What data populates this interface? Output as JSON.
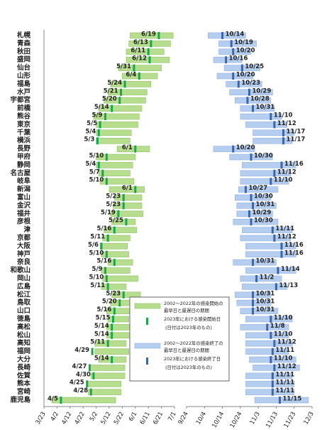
{
  "chart_data": {
    "type": "range",
    "categories": [
      "札幌",
      "青森",
      "秋田",
      "盛岡",
      "仙台",
      "山形",
      "福島",
      "水戸",
      "宇都宮",
      "前橋",
      "熊谷",
      "東京",
      "千葉",
      "横浜",
      "長野",
      "甲府",
      "静岡",
      "名古屋",
      "岐阜",
      "新潟",
      "富山",
      "金沢",
      "福井",
      "彦根",
      "津",
      "京都",
      "大阪",
      "神戸",
      "奈良",
      "和歌山",
      "岡山",
      "広島",
      "松江",
      "鳥取",
      "山口",
      "徳島",
      "高松",
      "松山",
      "高知",
      "福岡",
      "大分",
      "長崎",
      "佐賀",
      "熊本",
      "宮崎",
      "鹿児島"
    ],
    "panels": [
      {
        "xlim": [
          "3/23",
          "7/1"
        ],
        "xticks": [
          "3/23",
          "4/2",
          "4/12",
          "4/22",
          "5/2",
          "5/12",
          "5/22",
          "6/1",
          "6/11",
          "6/21",
          "7/1"
        ],
        "ranges": {
          "name": [
            "2002～2022年の感染開始の",
            "最早日と最遅日の期間"
          ],
          "color": "#b7dd8e",
          "values": [
            [
              "5/28",
              "6/30"
            ],
            [
              "5/27",
              "6/28"
            ],
            [
              "5/25",
              "6/23"
            ],
            [
              "5/25",
              "6/27"
            ],
            [
              "5/19",
              "6/21"
            ],
            [
              "5/22",
              "6/18"
            ],
            [
              "5/13",
              "6/13"
            ],
            [
              "5/11",
              "6/10"
            ],
            [
              "5/8",
              "6/9"
            ],
            [
              "5/4",
              "6/6"
            ],
            [
              "4/30",
              "6/4"
            ],
            [
              "5/2",
              "6/3"
            ],
            [
              "5/2",
              "5/29"
            ],
            [
              "5/2",
              "5/28"
            ],
            [
              "5/18",
              "6/12"
            ],
            [
              "5/2",
              "6/1"
            ],
            [
              "5/2",
              "5/30"
            ],
            [
              "5/4",
              "5/28"
            ],
            [
              "5/5",
              "5/31"
            ],
            [
              "5/12",
              "6/8"
            ],
            [
              "5/16",
              "6/6"
            ],
            [
              "5/15",
              "6/6"
            ],
            [
              "5/13",
              "6/7"
            ],
            [
              "5/14",
              "6/1"
            ],
            [
              "5/8",
              "6/2"
            ],
            [
              "5/7",
              "5/28"
            ],
            [
              "5/5",
              "5/26"
            ],
            [
              "5/6",
              "5/27"
            ],
            [
              "5/11",
              "5/30"
            ],
            [
              "5/6",
              "5/28"
            ],
            [
              "5/7",
              "6/3"
            ],
            [
              "5/6",
              "5/25"
            ],
            [
              "5/14",
              "6/5"
            ],
            [
              "5/13",
              "6/4"
            ],
            [
              "5/10",
              "6/1"
            ],
            [
              "5/11",
              "5/27"
            ],
            [
              "5/10",
              "5/30"
            ],
            [
              "5/10",
              "5/28"
            ],
            [
              "5/1",
              "5/25"
            ],
            [
              "5/1",
              "5/27"
            ],
            [
              "5/4",
              "5/25"
            ],
            [
              "4/27",
              "5/24"
            ],
            [
              "4/28",
              "5/24"
            ],
            [
              "4/26",
              "5/21"
            ],
            [
              "4/26",
              "5/21"
            ],
            [
              "3/29",
              "5/17"
            ]
          ]
        },
        "markers": {
          "name": "2023年における感染開始日",
          "color": "#15a84c",
          "label_side": "left",
          "values": [
            "6/19",
            "6/13",
            "6/11",
            "6/12",
            "5/31",
            "6/4",
            "5/24",
            "5/21",
            "5/20",
            "5/14",
            "5/9",
            "5/5",
            "5/4",
            "5/3",
            "6/1",
            "5/10",
            "5/4",
            "5/7",
            "5/10",
            "6/1",
            "5/23",
            "5/23",
            "5/19",
            "5/25",
            "5/16",
            "5/11",
            "5/6",
            "5/10",
            "5/16",
            "5/9",
            "5/10",
            "5/11",
            "5/23",
            "5/20",
            "5/16",
            "5/15",
            "5/14",
            "5/14",
            "5/11",
            "4/29",
            "5/14",
            "4/27",
            "4/30",
            "4/25",
            "4/28",
            "4/5"
          ]
        },
        "note": "(日付は2023年のもの)"
      },
      {
        "xlim": [
          "9/24",
          "12/3"
        ],
        "xticks": [
          "9/24",
          "10/4",
          "10/14",
          "10/24",
          "11/3",
          "11/13",
          "11/23",
          "12/3"
        ],
        "ranges": {
          "name": [
            "2002～2022年の感染終了の",
            "最早日と最遅日の期間"
          ],
          "color": "#b5cdee",
          "values": [
            [
              "10/6",
              "10/27"
            ],
            [
              "10/12",
              "11/2"
            ],
            [
              "10/12",
              "10/30"
            ],
            [
              "10/9",
              "10/25"
            ],
            [
              "10/15",
              "11/4"
            ],
            [
              "10/11",
              "10/31"
            ],
            [
              "10/16",
              "11/5"
            ],
            [
              "10/18",
              "11/11"
            ],
            [
              "10/21",
              "11/10"
            ],
            [
              "10/24",
              "11/12"
            ],
            [
              "10/24",
              "11/16"
            ],
            [
              "10/27",
              "11/19"
            ],
            [
              "10/31",
              "11/23"
            ],
            [
              "10/31",
              "11/22"
            ],
            [
              "10/9",
              "11/1"
            ],
            [
              "10/18",
              "11/11"
            ],
            [
              "10/25",
              "11/24"
            ],
            [
              "10/24",
              "11/21"
            ],
            [
              "10/24",
              "11/20"
            ],
            [
              "10/23",
              "11/14"
            ],
            [
              "10/21",
              "11/10"
            ],
            [
              "10/22",
              "11/13"
            ],
            [
              "10/22",
              "11/11"
            ],
            [
              "10/20",
              "11/14"
            ],
            [
              "10/25",
              "11/22"
            ],
            [
              "10/24",
              "11/21"
            ],
            [
              "10/27",
              "11/24"
            ],
            [
              "10/27",
              "11/24"
            ],
            [
              "10/20",
              "11/13"
            ],
            [
              "10/27",
              "11/24"
            ],
            [
              "10/24",
              "11/16"
            ],
            [
              "10/25",
              "11/19"
            ],
            [
              "10/21",
              "11/10"
            ],
            [
              "10/22",
              "11/10"
            ],
            [
              "10/24",
              "11/14"
            ],
            [
              "10/27",
              "11/22"
            ],
            [
              "10/24",
              "11/20"
            ],
            [
              "10/27",
              "11/20"
            ],
            [
              "10/27",
              "11/22"
            ],
            [
              "10/27",
              "11/20"
            ],
            [
              "10/29",
              "11/24"
            ],
            [
              "10/31",
              "11/26"
            ],
            [
              "10/27",
              "11/22"
            ],
            [
              "10/27",
              "11/23"
            ],
            [
              "10/27",
              "11/23"
            ],
            [
              "11/1",
              "12/1"
            ]
          ]
        },
        "markers": {
          "name": "2023年における感染終了日",
          "color": "#3b66a8",
          "label_side": "right",
          "values": [
            "10/14",
            "10/19",
            "10/20",
            "10/16",
            "10/25",
            "10/20",
            "10/23",
            "10/29",
            "10/28",
            "10/31",
            "11/10",
            "11/12",
            "11/17",
            "11/17",
            "10/20",
            "10/30",
            "11/16",
            "11/12",
            "11/10",
            "10/27",
            "10/30",
            "10/31",
            "10/29",
            "10/30",
            "11/11",
            "11/12",
            "11/16",
            "11/16",
            "10/31",
            "11/14",
            "11/2",
            "11/13",
            "10/31",
            "10/31",
            "10/31",
            "11/10",
            "11/8",
            "11/10",
            "11/12",
            "11/11",
            "11/10",
            "11/12",
            "11/11",
            "11/11",
            "11/11",
            "11/15"
          ],
          "label_colors": [
            "#222",
            "#222",
            "#222",
            "#222",
            "#222",
            "#222",
            "#222",
            "#222",
            "#222",
            "#222",
            "#e00000",
            "#222",
            "#e00000",
            "#e00000",
            "#222",
            "#222",
            "#222",
            "#222",
            "#222",
            "#222",
            "#222",
            "#222",
            "#222",
            "#222",
            "#222",
            "#e00000",
            "#222",
            "#222",
            "#222",
            "#222",
            "#222",
            "#222",
            "#222",
            "#222",
            "#222",
            "#222",
            "#222",
            "#222",
            "#222",
            "#222",
            "#222",
            "#222",
            "#222",
            "#222",
            "#222",
            "#222"
          ]
        },
        "note": "(日付は2023年のもの)"
      }
    ]
  }
}
